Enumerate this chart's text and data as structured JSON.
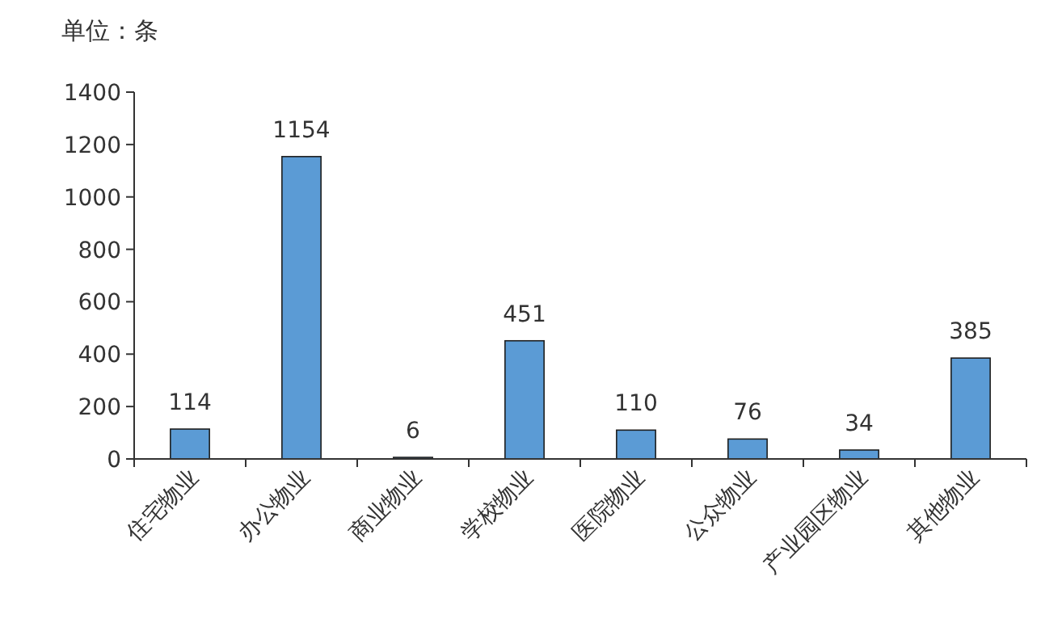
{
  "chart_data": {
    "type": "bar",
    "ylabel": "单位：条",
    "categories": [
      "住宅物业",
      "办公物业",
      "商业物业",
      "学校物业",
      "医院物业",
      "公众物业",
      "产业园区物业",
      "其他物业"
    ],
    "values": [
      114,
      1154,
      6,
      451,
      110,
      76,
      34,
      385
    ],
    "color": "#5b9bd5",
    "ylim": [
      0,
      1400
    ],
    "yticks": [
      0,
      200,
      400,
      600,
      800,
      1000,
      1200,
      1400
    ],
    "data_labels": true,
    "grid": false
  }
}
